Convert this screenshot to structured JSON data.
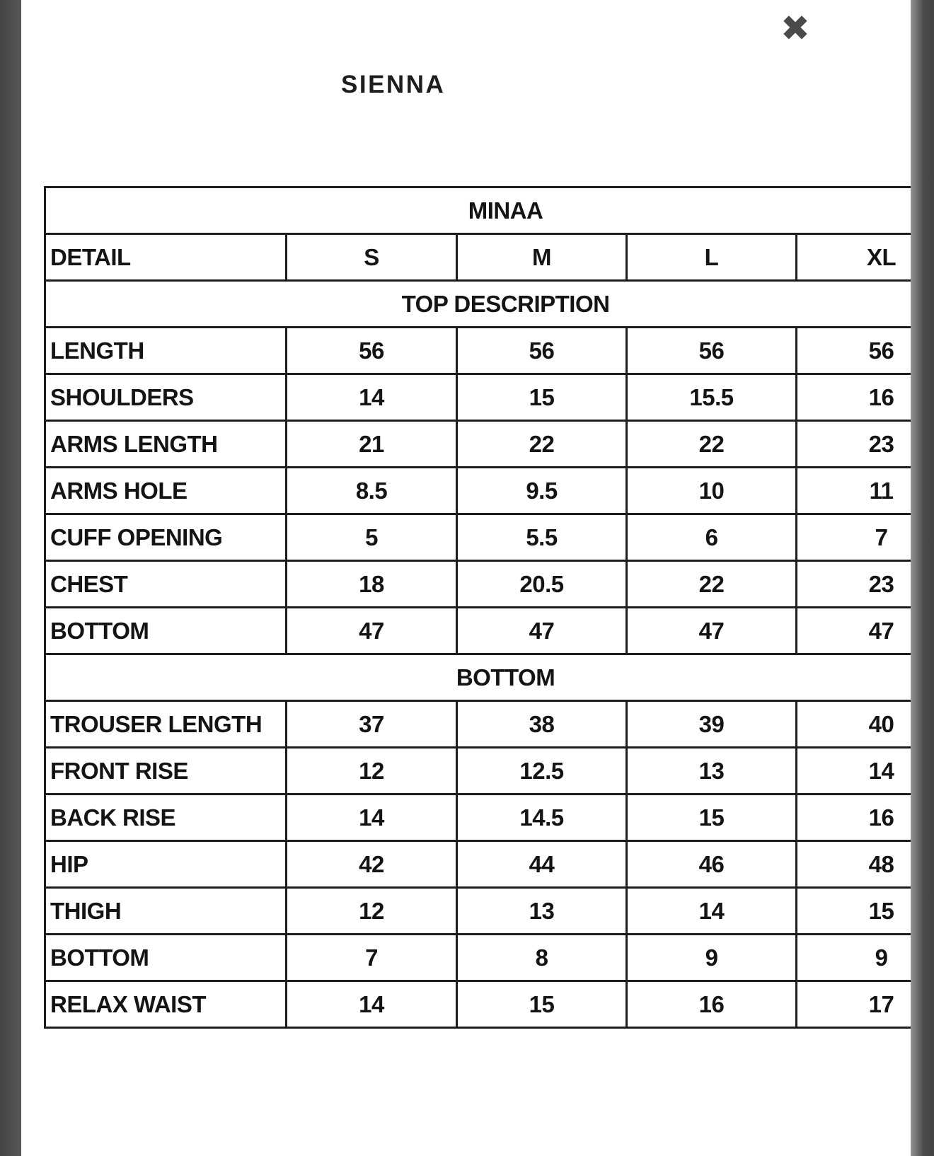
{
  "modal": {
    "title": "SIENNA",
    "close_icon": "✖"
  },
  "size_chart": {
    "brand": "MINAA",
    "columns": [
      "DETAIL",
      "S",
      "M",
      "L",
      "XL"
    ],
    "sections": [
      {
        "header": "TOP DESCRIPTION",
        "rows": [
          {
            "label": "LENGTH",
            "values": [
              "56",
              "56",
              "56",
              "56"
            ]
          },
          {
            "label": "SHOULDERS",
            "values": [
              "14",
              "15",
              "15.5",
              "16"
            ]
          },
          {
            "label": "ARMS LENGTH",
            "values": [
              "21",
              "22",
              "22",
              "23"
            ]
          },
          {
            "label": "ARMS HOLE",
            "values": [
              "8.5",
              "9.5",
              "10",
              "11"
            ]
          },
          {
            "label": "CUFF OPENING",
            "values": [
              "5",
              "5.5",
              "6",
              "7"
            ]
          },
          {
            "label": "CHEST",
            "values": [
              "18",
              "20.5",
              "22",
              "23"
            ]
          },
          {
            "label": "BOTTOM",
            "values": [
              "47",
              "47",
              "47",
              "47"
            ]
          }
        ]
      },
      {
        "header": "BOTTOM",
        "rows": [
          {
            "label": "TROUSER LENGTH",
            "values": [
              "37",
              "38",
              "39",
              "40"
            ]
          },
          {
            "label": "FRONT RISE",
            "values": [
              "12",
              "12.5",
              "13",
              "14"
            ]
          },
          {
            "label": "BACK RISE",
            "values": [
              "14",
              "14.5",
              "15",
              "16"
            ]
          },
          {
            "label": "HIP",
            "values": [
              "42",
              "44",
              "46",
              "48"
            ]
          },
          {
            "label": "THIGH",
            "values": [
              "12",
              "13",
              "14",
              "15"
            ]
          },
          {
            "label": "BOTTOM",
            "values": [
              "7",
              "8",
              "9",
              "9"
            ]
          },
          {
            "label": "RELAX WAIST",
            "values": [
              "14",
              "15",
              "16",
              "17"
            ]
          }
        ]
      }
    ]
  },
  "colors": {
    "table_border": "#1d1d1d",
    "table_text": "#141414",
    "title_text": "#1e1e1e",
    "close_icon_color": "#4a4a4a",
    "edge_strip": "#4b4b4b",
    "modal_background": "#ffffff"
  }
}
